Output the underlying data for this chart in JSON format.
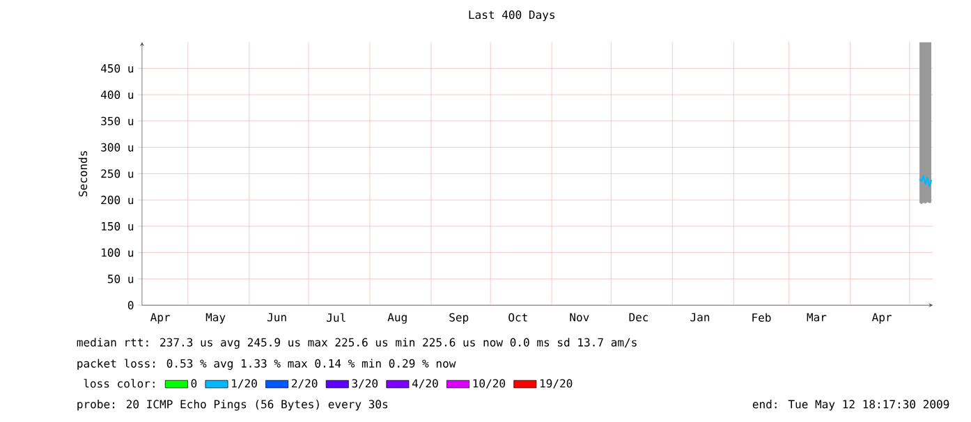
{
  "chart_data": {
    "type": "line",
    "title": "Last 400 Days",
    "ylabel": "Seconds",
    "legend_title": "loss color:",
    "legend": "bottom",
    "grid": true,
    "xlim": [
      "2008-04-07T18:17",
      "2009-05-12T18:17"
    ],
    "xticks": [
      {
        "value": "2008-04-17",
        "label": "Apr"
      },
      {
        "value": "2008-05-15",
        "label": "May"
      },
      {
        "value": "2008-06-15",
        "label": "Jun"
      },
      {
        "value": "2008-07-15",
        "label": "Jul"
      },
      {
        "value": "2008-08-15",
        "label": "Aug"
      },
      {
        "value": "2008-09-15",
        "label": "Sep"
      },
      {
        "value": "2008-10-15",
        "label": "Oct"
      },
      {
        "value": "2008-11-15",
        "label": "Nov"
      },
      {
        "value": "2008-12-15",
        "label": "Dec"
      },
      {
        "value": "2009-01-15",
        "label": "Jan"
      },
      {
        "value": "2009-02-15",
        "label": "Feb"
      },
      {
        "value": "2009-03-15",
        "label": "Mar"
      },
      {
        "value": "2009-04-17",
        "label": "Apr"
      },
      {
        "value": "2008-05-01",
        "label": null
      },
      {
        "value": "2008-06-01",
        "label": null
      },
      {
        "value": "2008-07-01",
        "label": null
      },
      {
        "value": "2008-08-01",
        "label": null
      },
      {
        "value": "2008-09-01",
        "label": null
      },
      {
        "value": "2008-10-01",
        "label": null
      },
      {
        "value": "2008-11-01",
        "label": null
      },
      {
        "value": "2008-12-01",
        "label": null
      },
      {
        "value": "2009-01-01",
        "label": null
      },
      {
        "value": "2009-02-01",
        "label": null
      },
      {
        "value": "2009-03-01",
        "label": null
      },
      {
        "value": "2009-04-01",
        "label": null
      },
      {
        "value": "2009-05-01",
        "label": null
      }
    ],
    "ylim": [
      0,
      500
    ],
    "yticks": [
      0,
      {
        "value": 50,
        "label": "50 u"
      },
      {
        "value": 100,
        "label": "100 u"
      },
      {
        "value": 150,
        "label": "150 u"
      },
      {
        "value": 200,
        "label": "200 u"
      },
      {
        "value": 250,
        "label": "250 u"
      },
      {
        "value": 300,
        "label": "300 u"
      },
      {
        "value": 350,
        "label": "350 u"
      },
      {
        "value": 400,
        "label": "400 u"
      },
      {
        "value": 450,
        "label": "450 u"
      }
    ],
    "x": [
      "2009-05-06",
      "2009-05-07",
      "2009-05-08",
      "2009-05-09",
      "2009-05-10",
      "2009-05-11",
      "2009-05-12"
    ],
    "series": [
      {
        "name": "0",
        "color": "#00ff00",
        "values": [
          null,
          null,
          null,
          null,
          null,
          null,
          null
        ]
      },
      {
        "name": "1/20",
        "color": "#00b8ff",
        "values": [
          240,
          236,
          246,
          230,
          242,
          226,
          238
        ],
        "lower": [
          195,
          192,
          195,
          193,
          196,
          194,
          195
        ],
        "upper": [
          500,
          500,
          500,
          500,
          500,
          500,
          500
        ]
      },
      {
        "name": "2/20",
        "color": "#0059ff",
        "values": [
          null,
          null,
          null,
          null,
          null,
          null,
          null
        ]
      },
      {
        "name": "3/20",
        "color": "#5e00ff",
        "values": [
          null,
          null,
          null,
          null,
          null,
          null,
          null
        ]
      },
      {
        "name": "4/20",
        "color": "#7e00ff",
        "values": [
          null,
          null,
          null,
          null,
          null,
          null,
          null
        ]
      },
      {
        "name": "10/20",
        "color": "#dd00ff",
        "values": [
          null,
          null,
          null,
          null,
          null,
          null,
          null
        ]
      },
      {
        "name": "19/20",
        "color": "#ff0000",
        "values": [
          null,
          null,
          null,
          null,
          null,
          null,
          null
        ]
      }
    ],
    "annotations": [
      "median rtt:  237.3 us avg  245.9 us max  225.6 us min  225.6 us now  0.0 ms sd  13.7   am/s",
      "packet loss: 0.53 % avg  1.33 % max  0.14 % min  0.29 % now",
      "probe:       20 ICMP Echo Pings (56 Bytes) every 30s",
      "end: Tue May 12 18:17:30 2009"
    ]
  }
}
